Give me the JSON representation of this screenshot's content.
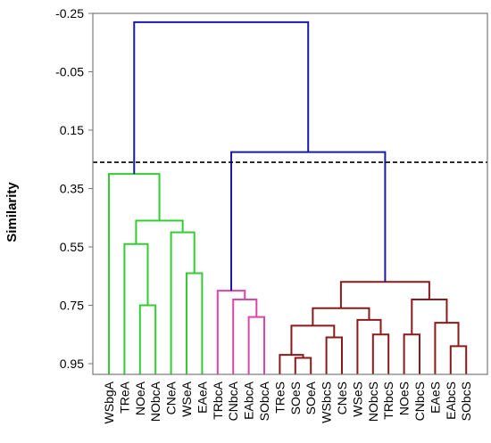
{
  "chart_data": {
    "type": "dendrogram",
    "ylabel": "Similarity",
    "ylim": [
      -0.25,
      1.0
    ],
    "y_axis_inverted": true,
    "y_ticks": [
      "-0.25",
      "-0.05",
      "0.15",
      "0.35",
      "0.55",
      "0.75",
      "0.95"
    ],
    "y_tick_values": [
      -0.25,
      -0.05,
      0.15,
      0.35,
      0.55,
      0.75,
      0.95
    ],
    "cutoff_similarity": 0.26,
    "cutoff_style": "dashed",
    "leaves": [
      "WSbgA",
      "TReA",
      "NOeA",
      "NObcA",
      "CNeA",
      "WSeA",
      "EAeA",
      "TRbcA",
      "CNbcA",
      "EAbcA",
      "SObcA",
      "TReS",
      "SOeS",
      "SOeA",
      "WSbcS",
      "CNeS",
      "WSeS",
      "NObcS",
      "TRbcS",
      "NOeS",
      "CNbcS",
      "EAeS",
      "EAbcS",
      "SObcS"
    ],
    "clusters": [
      {
        "color": "#33cc33",
        "leaves": [
          "WSbgA",
          "TReA",
          "NOeA",
          "NObcA",
          "CNeA",
          "WSeA",
          "EAeA"
        ]
      },
      {
        "color": "#dd44aa",
        "leaves": [
          "TRbcA",
          "CNbcA",
          "EAbcA",
          "SObcA"
        ]
      },
      {
        "color": "#8b1a1a",
        "leaves": [
          "TReS",
          "SOeS",
          "SOeA",
          "WSbcS",
          "CNeS",
          "WSeS",
          "NObcS",
          "TRbcS",
          "NOeS",
          "CNbcS",
          "EAeS",
          "EAbcS",
          "SObcS"
        ]
      }
    ],
    "upper_link_color": "#1a1aa6",
    "merges": [
      {
        "children": [
          "L2",
          "L3"
        ],
        "height": 0.75,
        "color": "g"
      },
      {
        "children": [
          "L1",
          "m0"
        ],
        "height": 0.54,
        "color": "g"
      },
      {
        "children": [
          "L5",
          "L6"
        ],
        "height": 0.64,
        "color": "g"
      },
      {
        "children": [
          "L4",
          "m2"
        ],
        "height": 0.5,
        "color": "g"
      },
      {
        "children": [
          "m1",
          "m3"
        ],
        "height": 0.46,
        "color": "g"
      },
      {
        "children": [
          "L0",
          "m4"
        ],
        "height": 0.3,
        "color": "g"
      },
      {
        "children": [
          "L9",
          "L10"
        ],
        "height": 0.79,
        "color": "p"
      },
      {
        "children": [
          "L8",
          "m6"
        ],
        "height": 0.73,
        "color": "p"
      },
      {
        "children": [
          "L7",
          "m7"
        ],
        "height": 0.7,
        "color": "p"
      },
      {
        "children": [
          "L12",
          "L13"
        ],
        "height": 0.93,
        "color": "r"
      },
      {
        "children": [
          "L11",
          "m9"
        ],
        "height": 0.92,
        "color": "r"
      },
      {
        "children": [
          "L14",
          "L15"
        ],
        "height": 0.86,
        "color": "r"
      },
      {
        "children": [
          "m10",
          "m11"
        ],
        "height": 0.82,
        "color": "r"
      },
      {
        "children": [
          "L17",
          "L18"
        ],
        "height": 0.85,
        "color": "r"
      },
      {
        "children": [
          "L16",
          "m13"
        ],
        "height": 0.8,
        "color": "r"
      },
      {
        "children": [
          "m12",
          "m14"
        ],
        "height": 0.76,
        "color": "r"
      },
      {
        "children": [
          "L19",
          "L20"
        ],
        "height": 0.85,
        "color": "r"
      },
      {
        "children": [
          "L22",
          "L23"
        ],
        "height": 0.89,
        "color": "r"
      },
      {
        "children": [
          "L21",
          "m17"
        ],
        "height": 0.81,
        "color": "r"
      },
      {
        "children": [
          "m16",
          "m18"
        ],
        "height": 0.73,
        "color": "r"
      },
      {
        "children": [
          "m15",
          "m19"
        ],
        "height": 0.67,
        "color": "r"
      },
      {
        "children": [
          "m20",
          "m8"
        ],
        "height": 0.225,
        "color": "b"
      },
      {
        "children": [
          "m5",
          "m21"
        ],
        "height": -0.22,
        "color": "b"
      }
    ]
  }
}
